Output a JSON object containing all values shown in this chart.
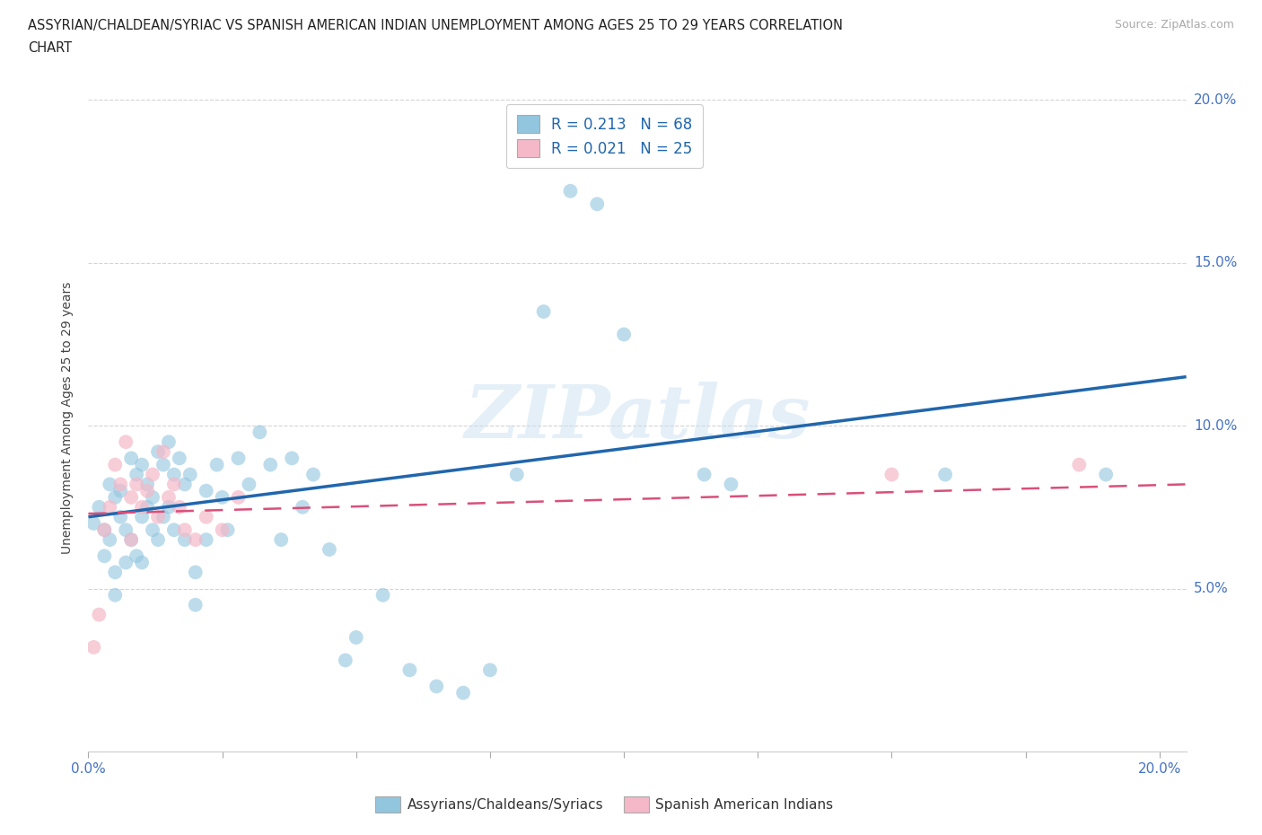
{
  "title_line1": "ASSYRIAN/CHALDEAN/SYRIAC VS SPANISH AMERICAN INDIAN UNEMPLOYMENT AMONG AGES 25 TO 29 YEARS CORRELATION",
  "title_line2": "CHART",
  "source": "Source: ZipAtlas.com",
  "ylabel": "Unemployment Among Ages 25 to 29 years",
  "xlim": [
    0.0,
    0.205
  ],
  "ylim": [
    0.0,
    0.205
  ],
  "xticks": [
    0.0,
    0.025,
    0.05,
    0.075,
    0.1,
    0.125,
    0.15,
    0.175,
    0.2
  ],
  "yticks": [
    0.05,
    0.1,
    0.15,
    0.2
  ],
  "xticklabels_show": [
    "0.0%",
    "20.0%"
  ],
  "xticklabels_pos": [
    0.0,
    0.2
  ],
  "yticklabels_right": [
    "20.0%",
    "15.0%",
    "10.0%",
    "5.0%"
  ],
  "yticklabels_right_pos": [
    0.2,
    0.15,
    0.1,
    0.05
  ],
  "blue_color": "#92c5de",
  "pink_color": "#f4b8c8",
  "blue_line_color": "#2166ac",
  "pink_line_color": "#d9507a",
  "legend_label1": "Assyrians/Chaldeans/Syriacs",
  "legend_label2": "Spanish American Indians",
  "legend_R1": "0.213",
  "legend_N1": "68",
  "legend_R2": "0.021",
  "legend_N2": "25",
  "watermark": "ZIPatlas",
  "blue_scatter_x": [
    0.001,
    0.002,
    0.003,
    0.003,
    0.004,
    0.004,
    0.005,
    0.005,
    0.005,
    0.006,
    0.006,
    0.007,
    0.007,
    0.008,
    0.008,
    0.009,
    0.009,
    0.01,
    0.01,
    0.01,
    0.011,
    0.011,
    0.012,
    0.012,
    0.013,
    0.013,
    0.014,
    0.014,
    0.015,
    0.015,
    0.016,
    0.016,
    0.017,
    0.018,
    0.018,
    0.019,
    0.02,
    0.02,
    0.022,
    0.022,
    0.024,
    0.025,
    0.026,
    0.028,
    0.03,
    0.032,
    0.034,
    0.036,
    0.038,
    0.04,
    0.042,
    0.045,
    0.048,
    0.05,
    0.055,
    0.06,
    0.065,
    0.07,
    0.075,
    0.08,
    0.085,
    0.09,
    0.095,
    0.1,
    0.115,
    0.12,
    0.16,
    0.19
  ],
  "blue_scatter_y": [
    0.07,
    0.075,
    0.068,
    0.06,
    0.082,
    0.065,
    0.078,
    0.055,
    0.048,
    0.08,
    0.072,
    0.068,
    0.058,
    0.09,
    0.065,
    0.085,
    0.06,
    0.088,
    0.072,
    0.058,
    0.082,
    0.075,
    0.078,
    0.068,
    0.092,
    0.065,
    0.088,
    0.072,
    0.095,
    0.075,
    0.085,
    0.068,
    0.09,
    0.082,
    0.065,
    0.085,
    0.055,
    0.045,
    0.08,
    0.065,
    0.088,
    0.078,
    0.068,
    0.09,
    0.082,
    0.098,
    0.088,
    0.065,
    0.09,
    0.075,
    0.085,
    0.062,
    0.028,
    0.035,
    0.048,
    0.025,
    0.02,
    0.018,
    0.025,
    0.085,
    0.135,
    0.172,
    0.168,
    0.128,
    0.085,
    0.082,
    0.085,
    0.085
  ],
  "pink_scatter_x": [
    0.001,
    0.002,
    0.003,
    0.004,
    0.005,
    0.006,
    0.007,
    0.008,
    0.008,
    0.009,
    0.01,
    0.011,
    0.012,
    0.013,
    0.014,
    0.015,
    0.016,
    0.017,
    0.018,
    0.02,
    0.022,
    0.025,
    0.028,
    0.15,
    0.185
  ],
  "pink_scatter_y": [
    0.032,
    0.042,
    0.068,
    0.075,
    0.088,
    0.082,
    0.095,
    0.078,
    0.065,
    0.082,
    0.075,
    0.08,
    0.085,
    0.072,
    0.092,
    0.078,
    0.082,
    0.075,
    0.068,
    0.065,
    0.072,
    0.068,
    0.078,
    0.085,
    0.088
  ],
  "blue_trend_x": [
    0.0,
    0.205
  ],
  "blue_trend_y": [
    0.072,
    0.115
  ],
  "pink_trend_x": [
    0.0,
    0.205
  ],
  "pink_trend_y": [
    0.073,
    0.082
  ],
  "grid_color": "#d0d0d0",
  "tick_color": "#4472c4",
  "bg_color": "#ffffff"
}
